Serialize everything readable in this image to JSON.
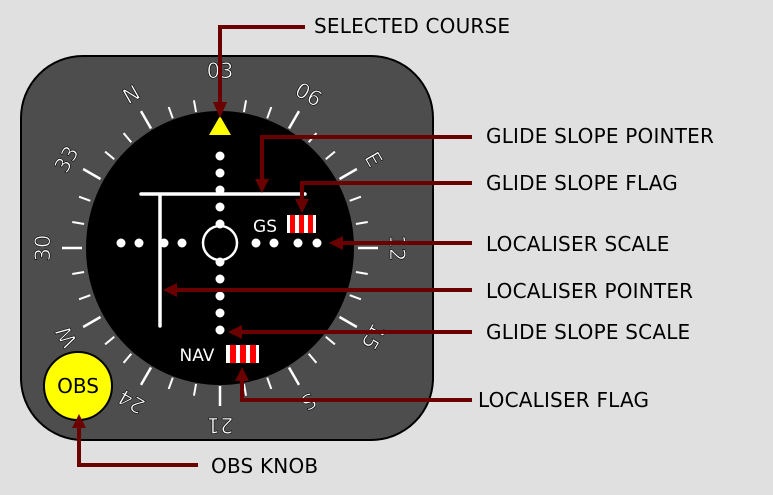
{
  "instrument": {
    "compass_labels": [
      "03",
      "06",
      "E",
      "12",
      "15",
      "S",
      "21",
      "24",
      "W",
      "30",
      "33",
      "N"
    ],
    "gs_text": "GS",
    "nav_text": "NAV",
    "obs_text": "OBS"
  },
  "callouts": {
    "selected_course": "SELECTED COURSE",
    "glide_slope_pointer": "GLIDE SLOPE POINTER",
    "glide_slope_flag": "GLIDE SLOPE FLAG",
    "localiser_scale": "LOCALISER SCALE",
    "localiser_pointer": "LOCALISER POINTER",
    "glide_slope_scale": "GLIDE SLOPE SCALE",
    "localiser_flag": "LOCALISER FLAG",
    "obs_knob": "OBS KNOB"
  },
  "colors": {
    "background": "#e0e0e0",
    "bezel": "#4d4d4d",
    "face": "#000000",
    "leader": "#6b0000",
    "course_marker": "#ffff00",
    "obs_knob": "#ffff00",
    "flag_red": "#ff0000"
  }
}
